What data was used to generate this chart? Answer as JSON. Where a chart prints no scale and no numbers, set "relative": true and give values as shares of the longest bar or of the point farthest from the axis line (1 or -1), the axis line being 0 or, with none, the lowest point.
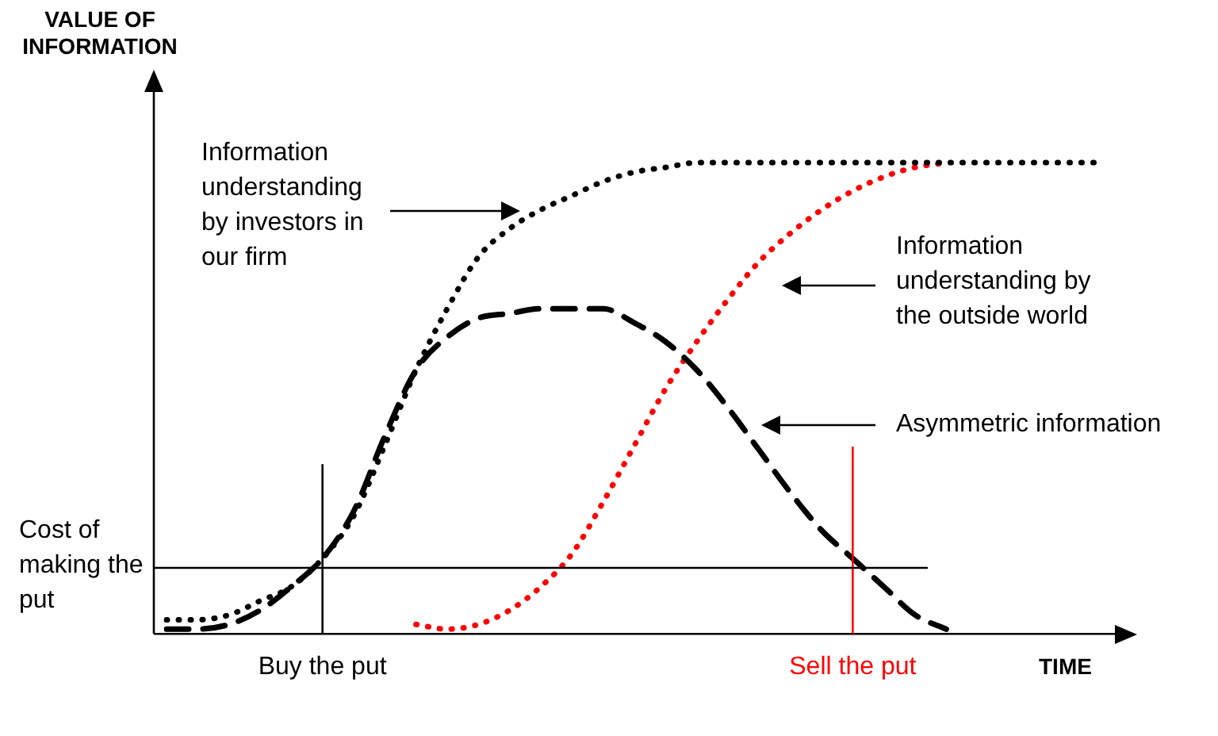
{
  "chart_data": {
    "type": "line",
    "ylabel": "VALUE OF INFORMATION",
    "xlabel": "TIME",
    "relative": true,
    "legend": false,
    "marker": "none",
    "categories": [
      null,
      null,
      null,
      null,
      null,
      null,
      null,
      null,
      null,
      null,
      null,
      null,
      null,
      null,
      null,
      null,
      null,
      null,
      null,
      null,
      null,
      null,
      null,
      null,
      null,
      null,
      null,
      null,
      null,
      null,
      null
    ],
    "series": [
      {
        "color": "#000000",
        "line_style": "dotted",
        "values": [
          0.03,
          0.03,
          0.04,
          0.07,
          0.1,
          0.16,
          0.25,
          0.4,
          0.56,
          0.69,
          0.8,
          0.86,
          0.9,
          0.93,
          0.96,
          0.98,
          0.99,
          1,
          1,
          1,
          1,
          1,
          1,
          1,
          1,
          1,
          1,
          1,
          1,
          1,
          1
        ]
      },
      {
        "color": "#000000",
        "line_style": "dashed",
        "values": [
          0.01,
          0.01,
          0.02,
          0.05,
          0.1,
          0.16,
          0.26,
          0.42,
          0.56,
          0.63,
          0.67,
          0.68,
          0.69,
          0.69,
          0.69,
          0.66,
          0.62,
          0.56,
          0.48,
          0.39,
          0.3,
          0.22,
          0.16,
          0.1,
          0.04,
          0.01,
          null,
          null,
          null,
          null,
          null
        ]
      },
      {
        "color": "#ff0000",
        "line_style": "dotted",
        "values": [
          null,
          null,
          null,
          null,
          null,
          null,
          null,
          null,
          0.02,
          0.01,
          0.02,
          0.05,
          0.1,
          0.17,
          0.28,
          0.4,
          0.52,
          0.62,
          0.71,
          0.79,
          0.85,
          0.9,
          0.94,
          0.97,
          0.99,
          1,
          null,
          null,
          null,
          null,
          null
        ]
      }
    ],
    "ref_lines": [
      {
        "axis": "y",
        "value": 0.14,
        "label": "Cost of making the put",
        "color": "#000000"
      }
    ],
    "annotations": [
      "Information understanding by investors in our firm",
      "Information understanding by the outside world",
      "Asymmetric information",
      "Buy the put",
      "Sell the put"
    ]
  }
}
